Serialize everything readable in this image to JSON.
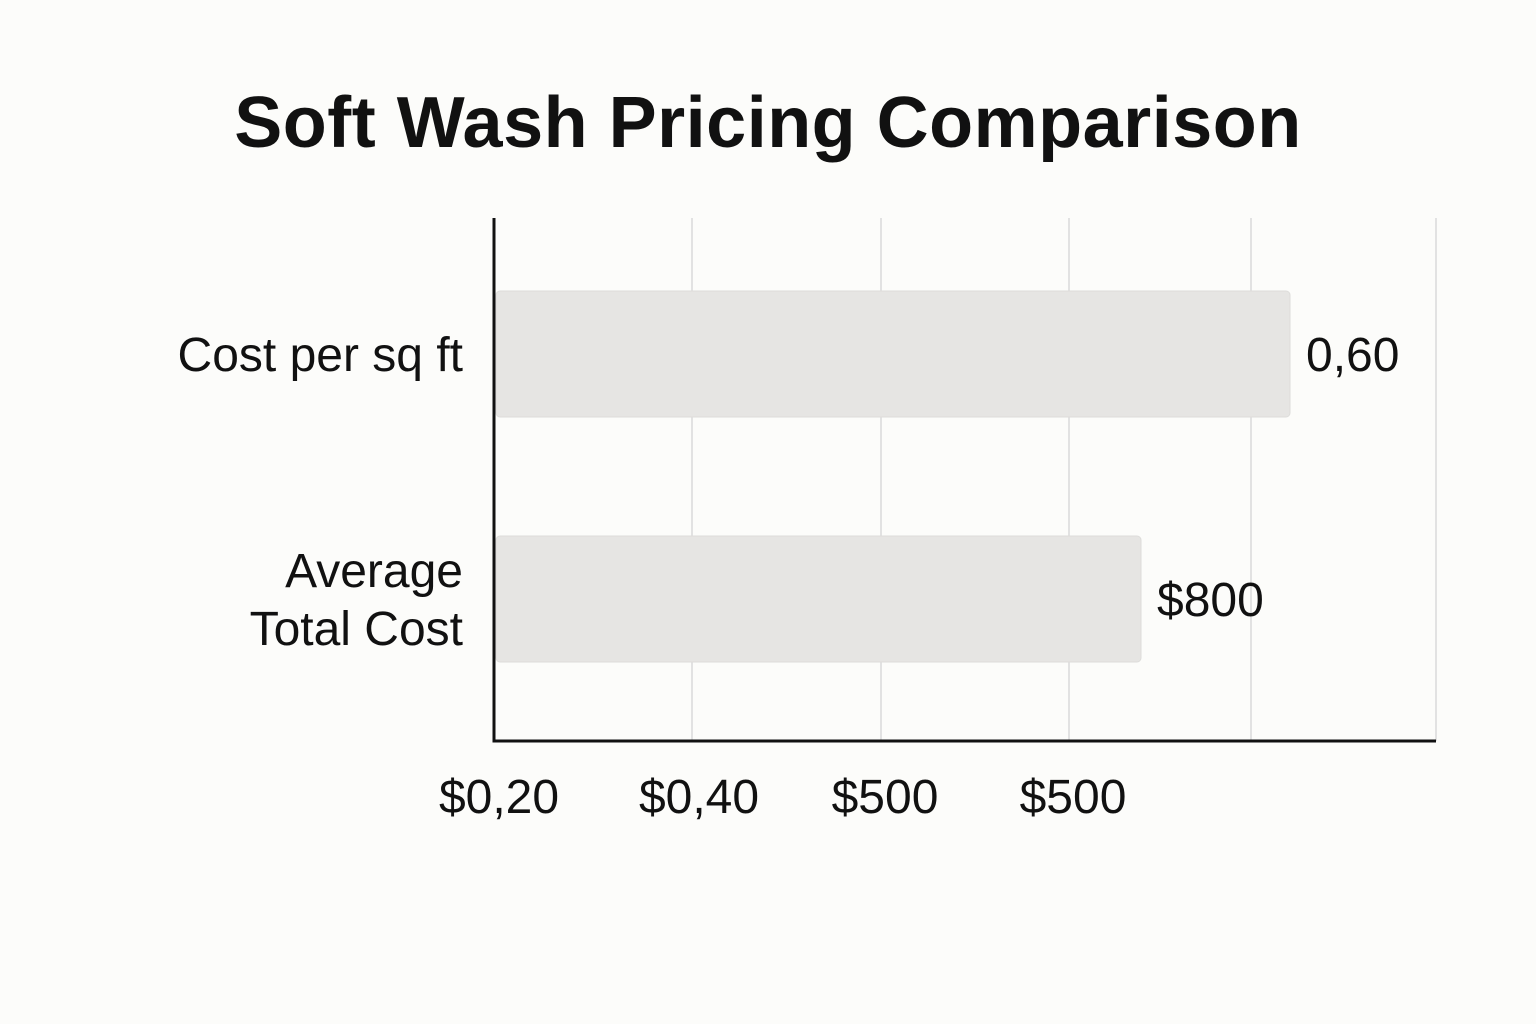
{
  "chart_data": {
    "type": "bar",
    "orientation": "horizontal",
    "title": "Soft Wash Pricing Comparison",
    "categories": [
      "Cost per sq ft",
      "Average\nTotal Cost"
    ],
    "values": [
      0.6,
      800
    ],
    "value_labels": [
      "0,60",
      "$800"
    ],
    "x_tick_labels": [
      "$0,20",
      "$0,40",
      "$500",
      "$500"
    ],
    "xlabel": "",
    "ylabel": "",
    "grid": true,
    "legend": "none",
    "bar_color": "#e6e5e3",
    "axis_color": "#111111",
    "grid_color": "#e2e2e2"
  }
}
